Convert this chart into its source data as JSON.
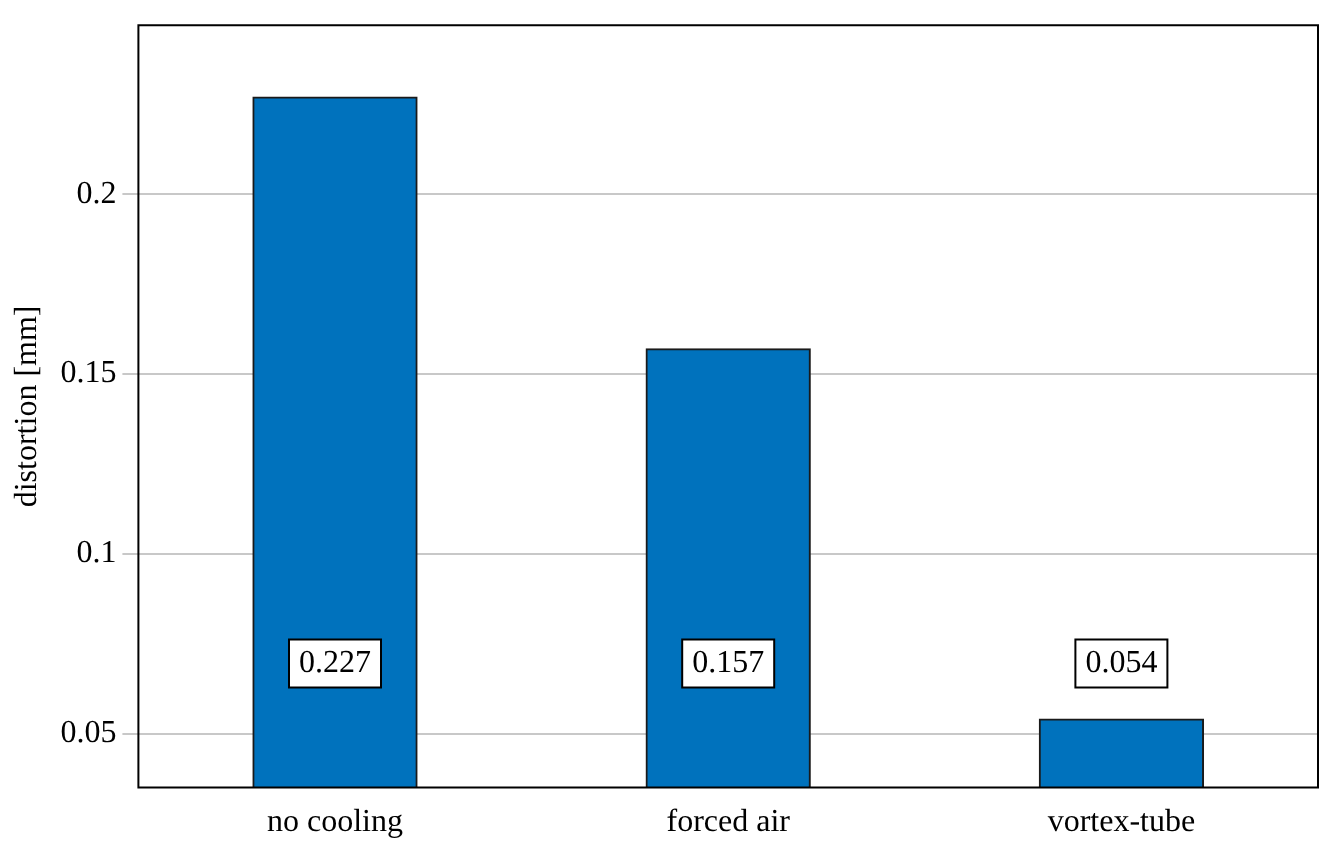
{
  "chart_data": {
    "type": "bar",
    "ylabel": "distortion [mm]",
    "categories": [
      "no cooling",
      "forced air",
      "vortex-tube"
    ],
    "values": [
      0.227,
      0.157,
      0.054
    ],
    "color": "#0072bd",
    "ylim": [
      0.035,
      0.247
    ],
    "yticks": [
      0.05,
      0.1,
      0.15,
      0.2
    ],
    "grid": "y",
    "data_labels": true,
    "legend": false
  }
}
